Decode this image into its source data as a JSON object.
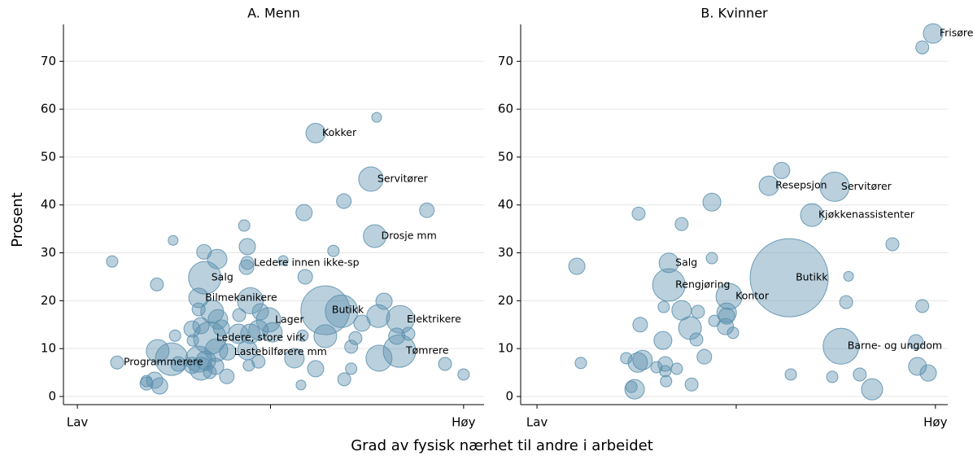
{
  "shared": {
    "ylabel": "Prosent",
    "xlabel": "Grad av fysisk nærhet til andre i arbeidet"
  },
  "chart_data": [
    {
      "type": "scatter",
      "title": "A. Menn",
      "color": "#5b8fad",
      "grid": true,
      "xlim": [
        -0.036,
        1.053
      ],
      "ylim": [
        -1.7,
        77.7
      ],
      "xticks": [
        {
          "value": 0,
          "label": "Lav"
        },
        {
          "value": 0.5,
          "label": null
        },
        {
          "value": 1,
          "label": "Høy"
        }
      ],
      "yticks": [
        0,
        10,
        20,
        30,
        40,
        50,
        60,
        70
      ],
      "x": [
        0.617,
        0.775,
        0.76,
        0.69,
        0.587,
        0.905,
        0.77,
        0.432,
        0.248,
        0.44,
        0.328,
        0.663,
        0.09,
        0.362,
        0.44,
        0.533,
        0.438,
        0.33,
        0.59,
        0.206,
        0.314,
        0.448,
        0.642,
        0.684,
        0.794,
        0.836,
        0.779,
        0.737,
        0.495,
        0.474,
        0.419,
        0.349,
        0.314,
        0.364,
        0.32,
        0.373,
        0.297,
        0.469,
        0.448,
        0.417,
        0.505,
        0.343,
        0.642,
        0.583,
        0.72,
        0.827,
        0.857,
        0.253,
        0.299,
        0.834,
        0.781,
        0.709,
        0.208,
        0.389,
        0.44,
        0.36,
        0.244,
        0.314,
        0.333,
        0.297,
        0.103,
        0.261,
        0.562,
        0.469,
        0.444,
        0.32,
        0.358,
        0.617,
        0.709,
        0.952,
        1.0,
        0.387,
        0.343,
        0.691,
        0.2,
        0.213,
        0.179,
        0.179,
        0.579
      ],
      "values": [
        55.0,
        58.3,
        45.4,
        40.8,
        38.4,
        38.9,
        33.5,
        35.7,
        32.6,
        31.3,
        30.2,
        30.4,
        28.2,
        28.7,
        27.9,
        28.4,
        27.0,
        24.8,
        25.0,
        23.4,
        20.6,
        20.0,
        18.0,
        17.8,
        19.9,
        16.1,
        16.8,
        15.3,
        16.0,
        17.7,
        17.0,
        17.7,
        18.2,
        16.1,
        14.8,
        14.3,
        14.1,
        13.9,
        13.1,
        13.1,
        13.4,
        12.2,
        12.6,
        12.7,
        12.2,
        12.6,
        13.1,
        12.7,
        11.7,
        9.5,
        8.0,
        10.4,
        9.5,
        9.3,
        9.7,
        9.7,
        7.8,
        7.8,
        7.5,
        6.5,
        7.1,
        6.8,
        8.0,
        7.3,
        6.5,
        5.8,
        6.3,
        5.8,
        5.8,
        6.8,
        4.6,
        4.2,
        5.1,
        3.6,
        3.4,
        2.2,
        3.2,
        2.7,
        2.4
      ],
      "sizes": [
        144,
        36,
        225,
        81,
        100,
        81,
        196,
        49,
        36,
        100,
        81,
        49,
        49,
        144,
        64,
        36,
        81,
        400,
        81,
        64,
        144,
        256,
        900,
        400,
        100,
        289,
        196,
        100,
        225,
        100,
        64,
        196,
        64,
        144,
        100,
        100,
        100,
        144,
        144,
        144,
        144,
        400,
        196,
        49,
        64,
        100,
        64,
        49,
        49,
        400,
        256,
        64,
        196,
        100,
        144,
        196,
        400,
        256,
        144,
        100,
        64,
        81,
        144,
        64,
        49,
        196,
        100,
        100,
        49,
        64,
        49,
        81,
        64,
        64,
        100,
        100,
        49,
        64,
        36
      ],
      "point_labels": [
        "Kokker",
        null,
        "Servitører",
        null,
        null,
        null,
        "Drosje mm",
        null,
        null,
        null,
        null,
        null,
        null,
        null,
        "Ledere innen ikke-sp",
        null,
        null,
        "Salg",
        null,
        null,
        "Bilmekanikere",
        null,
        "Butikk",
        null,
        null,
        "Elektrikere",
        null,
        null,
        "Lager",
        null,
        null,
        null,
        null,
        null,
        null,
        null,
        null,
        null,
        null,
        null,
        null,
        "Ledere, store virk",
        null,
        null,
        null,
        null,
        null,
        null,
        null,
        "Tømrere",
        null,
        null,
        null,
        "Lastebilførere mm",
        null,
        null,
        null,
        null,
        null,
        null,
        "Programmerere",
        null,
        null,
        null,
        null,
        null,
        null,
        null,
        null,
        null,
        null,
        null,
        null,
        null,
        null,
        null,
        null,
        null,
        null
      ]
    },
    {
      "type": "scatter",
      "title": "B. Kvinner",
      "color": "#5b8fad",
      "grid": true,
      "xlim": [
        -0.041,
        1.031
      ],
      "ylim": [
        -1.7,
        77.7
      ],
      "xticks": [
        {
          "value": 0,
          "label": "Lav"
        },
        {
          "value": 0.5,
          "label": null
        },
        {
          "value": 1,
          "label": "Høy"
        }
      ],
      "yticks": [
        0,
        10,
        20,
        30,
        40,
        50,
        60,
        70
      ],
      "x": [
        0.994,
        0.967,
        0.614,
        0.582,
        0.747,
        0.439,
        0.255,
        0.69,
        0.363,
        0.892,
        0.1,
        0.331,
        0.439,
        0.633,
        0.782,
        0.331,
        0.482,
        0.776,
        0.967,
        0.318,
        0.363,
        0.404,
        0.476,
        0.476,
        0.445,
        0.259,
        0.384,
        0.473,
        0.492,
        0.4,
        0.316,
        0.763,
        0.951,
        0.42,
        0.224,
        0.265,
        0.253,
        0.11,
        0.322,
        0.955,
        0.3,
        0.351,
        0.322,
        0.982,
        0.637,
        0.81,
        0.741,
        0.324,
        0.388,
        0.245,
        0.237,
        0.841
      ],
      "values": [
        75.8,
        72.9,
        47.2,
        44.0,
        43.8,
        40.6,
        38.2,
        37.9,
        36.0,
        31.8,
        27.2,
        27.9,
        28.9,
        24.8,
        25.1,
        23.3,
        20.9,
        19.7,
        18.9,
        18.7,
        18.0,
        17.7,
        17.5,
        16.8,
        15.8,
        15.0,
        14.3,
        14.6,
        13.3,
        11.9,
        11.7,
        10.5,
        11.4,
        8.3,
        8.0,
        7.6,
        7.1,
        7.0,
        6.8,
        6.3,
        6.1,
        5.8,
        5.3,
        4.9,
        4.6,
        4.6,
        4.1,
        3.2,
        2.5,
        1.5,
        2.0,
        1.5
      ],
      "sizes": [
        144,
        64,
        100,
        144,
        324,
        121,
        64,
        196,
        64,
        64,
        100,
        144,
        49,
        2304,
        36,
        400,
        256,
        64,
        64,
        49,
        144,
        64,
        144,
        100,
        49,
        81,
        196,
        100,
        49,
        64,
        121,
        484,
        81,
        81,
        49,
        144,
        144,
        49,
        81,
        121,
        49,
        49,
        49,
        100,
        49,
        64,
        49,
        49,
        64,
        144,
        49,
        169
      ],
      "point_labels": [
        "Frisører",
        null,
        null,
        "Resepsjon",
        "Servitører",
        null,
        null,
        "Kjøkkenassistenter",
        null,
        null,
        null,
        "Salg",
        null,
        "Butikk",
        null,
        "Rengjøring",
        "Kontor",
        null,
        null,
        null,
        null,
        null,
        null,
        null,
        null,
        null,
        null,
        null,
        null,
        null,
        null,
        "Barne- og ungdom",
        null,
        null,
        null,
        null,
        null,
        null,
        null,
        null,
        null,
        null,
        null,
        null,
        null,
        null,
        null,
        null,
        null,
        null,
        null,
        null
      ]
    }
  ]
}
